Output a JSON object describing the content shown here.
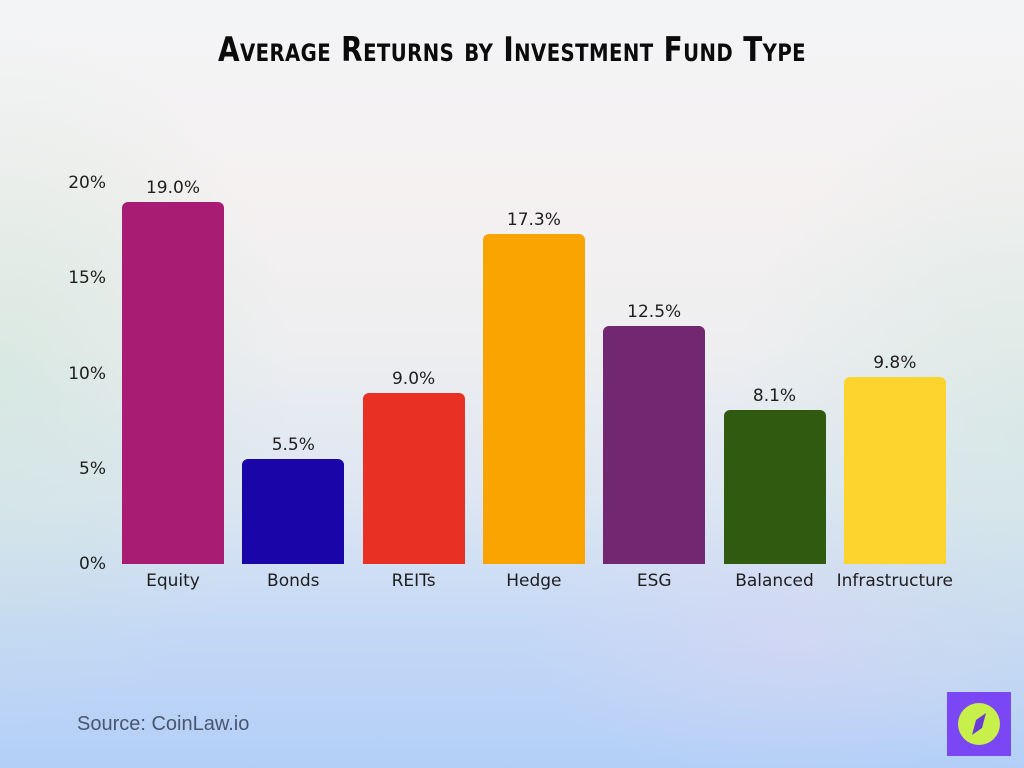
{
  "title": "Average Returns by Investment Fund Type",
  "source": "Source: CoinLaw.io",
  "logo": {
    "icon": "compass-icon",
    "bg_color": "#7b47f5",
    "circle_color": "#c8f04a"
  },
  "chart_data": {
    "type": "bar",
    "title": "Average Returns by Investment Fund Type",
    "xlabel": "",
    "ylabel": "",
    "categories": [
      "Equity",
      "Bonds",
      "REITs",
      "Hedge",
      "ESG",
      "Balanced",
      "Infrastructure"
    ],
    "values": [
      19.0,
      5.5,
      9.0,
      17.3,
      12.5,
      8.1,
      9.8
    ],
    "value_labels": [
      "19.0%",
      "5.5%",
      "9.0%",
      "17.3%",
      "12.5%",
      "8.1%",
      "9.8%"
    ],
    "colors": [
      "#a81c74",
      "#1a05a8",
      "#e83024",
      "#f9a400",
      "#722870",
      "#2f5a0f",
      "#fdd32e"
    ],
    "yticks": [
      "0%",
      "5%",
      "10%",
      "15%",
      "20%"
    ],
    "ylim": [
      0,
      20
    ],
    "grid": false,
    "legend": null
  }
}
